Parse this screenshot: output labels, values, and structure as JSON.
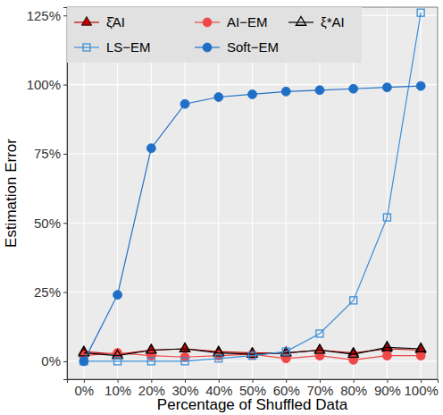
{
  "chart_data": {
    "type": "line",
    "x_label": "Percentage of Shuffled Data",
    "y_label": "Estimation Error",
    "categories": [
      "0%",
      "10%",
      "20%",
      "30%",
      "40%",
      "50%",
      "60%",
      "70%",
      "80%",
      "90%",
      "100%"
    ],
    "ylim": [
      -6.5,
      128
    ],
    "yticks": [
      {
        "value": 0,
        "label": "0%"
      },
      {
        "value": 25,
        "label": "25%"
      },
      {
        "value": 50,
        "label": "50%"
      },
      {
        "value": 75,
        "label": "75%"
      },
      {
        "value": 100,
        "label": "100%"
      },
      {
        "value": 125,
        "label": "125%"
      }
    ],
    "grid": true,
    "legend": "top-left",
    "series": [
      {
        "name": "ξ̂AI",
        "color": "#c00000",
        "marker": "triangle-filled",
        "line_style": "solid",
        "values": [
          3.5,
          2.5,
          4,
          4.5,
          3.5,
          3,
          3,
          4,
          3,
          4.5,
          4
        ]
      },
      {
        "name": "AI−EM",
        "color": "#f04848",
        "marker": "circle",
        "line_style": "solid",
        "values": [
          2,
          3,
          2,
          1.5,
          2,
          2.5,
          1,
          2,
          0.5,
          2,
          2
        ]
      },
      {
        "name": "ξ*AI",
        "color": "#000000",
        "marker": "triangle-open",
        "line_style": "solid",
        "values": [
          3,
          2,
          4,
          4.5,
          3,
          2.5,
          3,
          4,
          2.5,
          5,
          4.5
        ]
      },
      {
        "name": "LS−EM",
        "color": "#3a8fd8",
        "marker": "square-open",
        "line_style": "solid",
        "values": [
          0,
          0,
          0,
          0,
          1,
          2,
          3.5,
          10,
          22,
          52,
          126
        ]
      },
      {
        "name": "Soft−EM",
        "color": "#1f6fc6",
        "marker": "circle",
        "line_style": "solid",
        "values": [
          0,
          24,
          77,
          93,
          95.5,
          96.5,
          97.5,
          98,
          98.5,
          99,
          99.5
        ]
      }
    ]
  }
}
